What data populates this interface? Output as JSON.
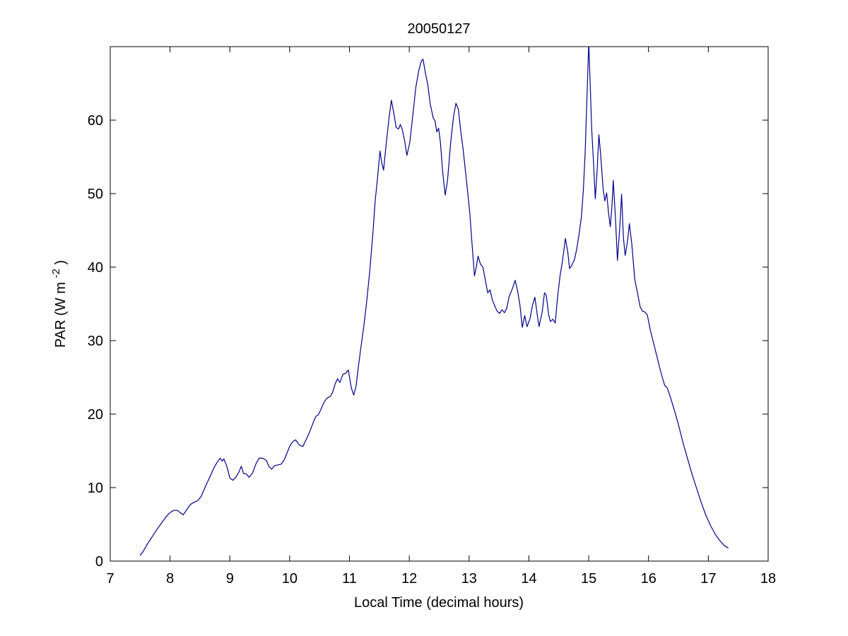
{
  "figure": {
    "background": "#ffffff",
    "axis_color": "#000000"
  },
  "labels": {
    "title": "20050127",
    "xlabel": "Local Time (decimal hours)",
    "ylabel_pre": "PAR (W m",
    "ylabel_sup": "-2",
    "ylabel_post": ")"
  },
  "chart_data": {
    "type": "line",
    "title": "20050127",
    "xlabel": "Local Time (decimal hours)",
    "ylabel": "PAR (W m^-2)",
    "legend": "none",
    "grid": false,
    "xlim": [
      7,
      18
    ],
    "ylim": [
      0,
      70
    ],
    "xticks": [
      7,
      8,
      9,
      10,
      11,
      12,
      13,
      14,
      15,
      16,
      17,
      18
    ],
    "yticks": [
      0,
      10,
      20,
      30,
      40,
      50,
      60
    ],
    "line_color": "#00008B",
    "line_width": 1.2,
    "series": [
      {
        "name": "PAR",
        "points": [
          [
            7.5,
            0.8
          ],
          [
            7.55,
            1.3
          ],
          [
            7.62,
            2.3
          ],
          [
            7.7,
            3.3
          ],
          [
            7.78,
            4.3
          ],
          [
            7.86,
            5.2
          ],
          [
            7.93,
            6.0
          ],
          [
            8.0,
            6.6
          ],
          [
            8.06,
            6.9
          ],
          [
            8.12,
            6.9
          ],
          [
            8.17,
            6.6
          ],
          [
            8.22,
            6.3
          ],
          [
            8.28,
            7.0
          ],
          [
            8.34,
            7.7
          ],
          [
            8.4,
            8.0
          ],
          [
            8.46,
            8.2
          ],
          [
            8.52,
            8.8
          ],
          [
            8.6,
            10.3
          ],
          [
            8.68,
            11.7
          ],
          [
            8.74,
            12.8
          ],
          [
            8.8,
            13.6
          ],
          [
            8.84,
            14.0
          ],
          [
            8.87,
            13.6
          ],
          [
            8.9,
            13.9
          ],
          [
            8.95,
            12.9
          ],
          [
            9.0,
            11.3
          ],
          [
            9.05,
            11.0
          ],
          [
            9.1,
            11.4
          ],
          [
            9.15,
            12.1
          ],
          [
            9.19,
            12.9
          ],
          [
            9.23,
            11.9
          ],
          [
            9.27,
            11.9
          ],
          [
            9.32,
            11.4
          ],
          [
            9.38,
            12.0
          ],
          [
            9.44,
            13.3
          ],
          [
            9.49,
            14.0
          ],
          [
            9.55,
            14.0
          ],
          [
            9.61,
            13.7
          ],
          [
            9.65,
            12.9
          ],
          [
            9.7,
            12.5
          ],
          [
            9.75,
            13.0
          ],
          [
            9.81,
            13.1
          ],
          [
            9.86,
            13.2
          ],
          [
            9.91,
            13.8
          ],
          [
            9.96,
            14.8
          ],
          [
            10.01,
            15.8
          ],
          [
            10.06,
            16.3
          ],
          [
            10.1,
            16.5
          ],
          [
            10.16,
            15.8
          ],
          [
            10.22,
            15.6
          ],
          [
            10.28,
            16.6
          ],
          [
            10.34,
            17.7
          ],
          [
            10.4,
            19.0
          ],
          [
            10.44,
            19.7
          ],
          [
            10.48,
            19.9
          ],
          [
            10.53,
            20.8
          ],
          [
            10.58,
            21.7
          ],
          [
            10.63,
            22.2
          ],
          [
            10.68,
            22.4
          ],
          [
            10.72,
            23.0
          ],
          [
            10.76,
            24.1
          ],
          [
            10.8,
            24.8
          ],
          [
            10.84,
            24.3
          ],
          [
            10.89,
            25.4
          ],
          [
            10.94,
            25.6
          ],
          [
            10.98,
            26.0
          ],
          [
            11.03,
            23.6
          ],
          [
            11.07,
            22.6
          ],
          [
            11.11,
            23.8
          ],
          [
            11.15,
            26.5
          ],
          [
            11.19,
            29.0
          ],
          [
            11.24,
            32.0
          ],
          [
            11.29,
            35.5
          ],
          [
            11.34,
            39.5
          ],
          [
            11.39,
            44.5
          ],
          [
            11.43,
            49.0
          ],
          [
            11.47,
            52.2
          ],
          [
            11.51,
            55.8
          ],
          [
            11.54,
            54.2
          ],
          [
            11.57,
            53.2
          ],
          [
            11.61,
            56.5
          ],
          [
            11.66,
            60.2
          ],
          [
            11.7,
            62.7
          ],
          [
            11.74,
            61.0
          ],
          [
            11.78,
            59.0
          ],
          [
            11.82,
            58.8
          ],
          [
            11.85,
            59.4
          ],
          [
            11.88,
            58.8
          ],
          [
            11.92,
            57.3
          ],
          [
            11.96,
            55.2
          ],
          [
            12.01,
            57.0
          ],
          [
            12.06,
            60.8
          ],
          [
            12.11,
            64.5
          ],
          [
            12.16,
            66.8
          ],
          [
            12.2,
            68.0
          ],
          [
            12.23,
            68.3
          ],
          [
            12.27,
            66.4
          ],
          [
            12.31,
            64.8
          ],
          [
            12.35,
            62.2
          ],
          [
            12.4,
            60.3
          ],
          [
            12.43,
            59.9
          ],
          [
            12.46,
            58.4
          ],
          [
            12.49,
            58.9
          ],
          [
            12.52,
            57.0
          ],
          [
            12.56,
            52.8
          ],
          [
            12.6,
            49.8
          ],
          [
            12.64,
            51.8
          ],
          [
            12.69,
            56.8
          ],
          [
            12.74,
            60.5
          ],
          [
            12.78,
            62.3
          ],
          [
            12.82,
            61.5
          ],
          [
            12.86,
            58.5
          ],
          [
            12.9,
            56.0
          ],
          [
            12.96,
            51.5
          ],
          [
            13.01,
            47.5
          ],
          [
            13.05,
            43.0
          ],
          [
            13.09,
            38.8
          ],
          [
            13.12,
            40.0
          ],
          [
            13.15,
            41.5
          ],
          [
            13.19,
            40.4
          ],
          [
            13.23,
            40.0
          ],
          [
            13.27,
            38.3
          ],
          [
            13.31,
            36.5
          ],
          [
            13.35,
            36.9
          ],
          [
            13.39,
            35.5
          ],
          [
            13.43,
            34.7
          ],
          [
            13.47,
            34.0
          ],
          [
            13.51,
            33.7
          ],
          [
            13.55,
            34.2
          ],
          [
            13.59,
            33.8
          ],
          [
            13.63,
            34.4
          ],
          [
            13.67,
            36.0
          ],
          [
            13.72,
            37.0
          ],
          [
            13.77,
            38.2
          ],
          [
            13.81,
            36.8
          ],
          [
            13.85,
            34.8
          ],
          [
            13.89,
            31.8
          ],
          [
            13.93,
            33.4
          ],
          [
            13.97,
            31.9
          ],
          [
            14.02,
            33.0
          ],
          [
            14.06,
            34.8
          ],
          [
            14.1,
            35.9
          ],
          [
            14.14,
            33.5
          ],
          [
            14.17,
            31.9
          ],
          [
            14.22,
            33.8
          ],
          [
            14.26,
            36.5
          ],
          [
            14.29,
            36.2
          ],
          [
            14.33,
            33.5
          ],
          [
            14.36,
            32.6
          ],
          [
            14.4,
            32.9
          ],
          [
            14.44,
            32.4
          ],
          [
            14.48,
            36.0
          ],
          [
            14.52,
            38.8
          ],
          [
            14.56,
            40.8
          ],
          [
            14.61,
            43.9
          ],
          [
            14.65,
            42.0
          ],
          [
            14.68,
            39.8
          ],
          [
            14.72,
            40.3
          ],
          [
            14.76,
            41.0
          ],
          [
            14.8,
            42.5
          ],
          [
            14.84,
            44.5
          ],
          [
            14.88,
            47.0
          ],
          [
            14.91,
            50.5
          ],
          [
            14.94,
            55.5
          ],
          [
            14.97,
            63.0
          ],
          [
            15.0,
            70.5
          ],
          [
            15.02,
            66.0
          ],
          [
            15.05,
            58.8
          ],
          [
            15.08,
            54.2
          ],
          [
            15.11,
            49.3
          ],
          [
            15.14,
            53.0
          ],
          [
            15.17,
            58.0
          ],
          [
            15.2,
            55.3
          ],
          [
            15.24,
            50.7
          ],
          [
            15.27,
            49.0
          ],
          [
            15.3,
            50.1
          ],
          [
            15.33,
            47.5
          ],
          [
            15.36,
            45.5
          ],
          [
            15.39,
            48.5
          ],
          [
            15.41,
            51.8
          ],
          [
            15.45,
            46.2
          ],
          [
            15.48,
            40.9
          ],
          [
            15.52,
            45.5
          ],
          [
            15.55,
            49.9
          ],
          [
            15.58,
            44.0
          ],
          [
            15.61,
            41.6
          ],
          [
            15.65,
            43.6
          ],
          [
            15.68,
            45.9
          ],
          [
            15.72,
            43.2
          ],
          [
            15.77,
            38.3
          ],
          [
            15.82,
            36.3
          ],
          [
            15.86,
            34.6
          ],
          [
            15.9,
            34.0
          ],
          [
            15.94,
            33.9
          ],
          [
            15.98,
            33.5
          ],
          [
            16.03,
            31.4
          ],
          [
            16.08,
            29.8
          ],
          [
            16.13,
            28.2
          ],
          [
            16.18,
            26.5
          ],
          [
            16.23,
            25.0
          ],
          [
            16.27,
            23.9
          ],
          [
            16.31,
            23.6
          ],
          [
            16.37,
            22.2
          ],
          [
            16.43,
            20.6
          ],
          [
            16.5,
            18.6
          ],
          [
            16.57,
            16.3
          ],
          [
            16.64,
            14.3
          ],
          [
            16.72,
            12.0
          ],
          [
            16.8,
            10.0
          ],
          [
            16.88,
            8.0
          ],
          [
            16.96,
            6.2
          ],
          [
            17.04,
            4.8
          ],
          [
            17.12,
            3.6
          ],
          [
            17.2,
            2.7
          ],
          [
            17.27,
            2.1
          ],
          [
            17.33,
            1.8
          ]
        ]
      }
    ]
  }
}
